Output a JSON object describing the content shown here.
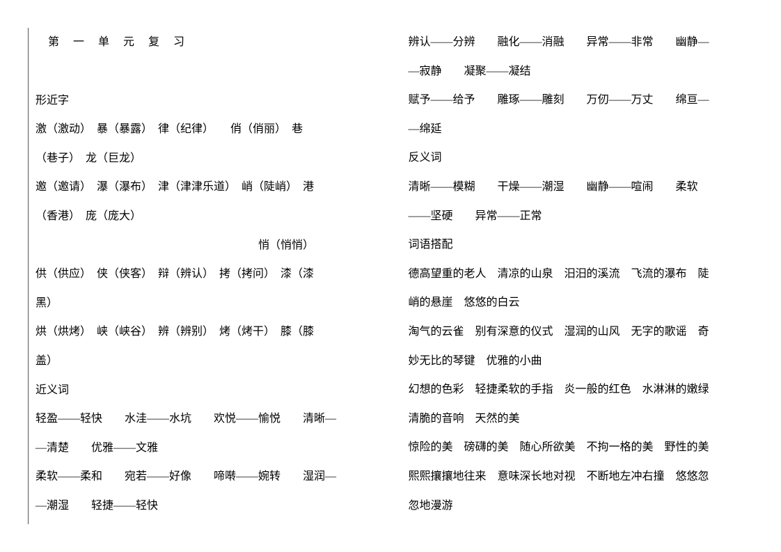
{
  "title": "第 一 单 元 复 习",
  "left": {
    "section1_header": "形近字",
    "l1": "激（激动）　暴（暴露）　律（纪律）　　俏（俏丽）　巷",
    "l2": "（巷子）　龙（巨龙）",
    "l3": "邀（邀请）　瀑（瀑布）　津（津津乐道）　峭（陡峭）　港",
    "l4": "（香港）　庞（庞大）",
    "l5": "　　　　　　　　　　　　　　　　　　　　悄（悄悄）",
    "l6": "供（供应）　侠（侠客）　辩（辨认）　拷（拷问）　漆（漆",
    "l7": "黑）",
    "l8": "烘（烘烤）　峡（峡谷）　辨（辨别）　烤（烤干）　膝（膝",
    "l9": "盖）",
    "section2_header": "近义词",
    "l10": "轻盈——轻快　　水洼——水坑　　欢悦——愉悦　　清晰—",
    "l11": "—清楚　　优雅——文雅",
    "l12": "柔软——柔和　　宛若——好像　　啼啭——婉转　　湿润—",
    "l13": "—潮湿　　轻捷——轻快"
  },
  "right": {
    "r1": "辨认——分辨　　融化——消融　　异常——非常　　幽静—",
    "r2": "—寂静　　凝聚——凝结",
    "r3": "赋予——给予　　雕琢——雕刻　　万仞——万丈　　绵亘—",
    "r4": "—绵延",
    "section3_header": "反义词",
    "r5": "清晰——模糊　　干燥——潮湿　　幽静——喧闹　　柔软",
    "r6": "——坚硬　　异常——正常",
    "section4_header": "词语搭配",
    "r7": "德高望重的老人　清凉的山泉　汨汨的溪流　飞流的瀑布　陡",
    "r8": "峭的悬崖　悠悠的白云",
    "r9": "淘气的云雀　别有深意的仪式　湿润的山风　无字的歌谣　奇",
    "r10": "妙无比的琴键　优雅的小曲",
    "r11": "幻想的色彩　轻捷柔软的手指　炎一般的红色　水淋淋的嫩绿",
    "r12": "清脆的音响　天然的美",
    "r13": "惊险的美　磅礴的美　随心所欲美　不拘一格的美　野性的美",
    "r14": "熙熙攘攘地往来　意味深长地对视　不断地左冲右撞　悠悠忽",
    "r15": "忽地漫游"
  }
}
